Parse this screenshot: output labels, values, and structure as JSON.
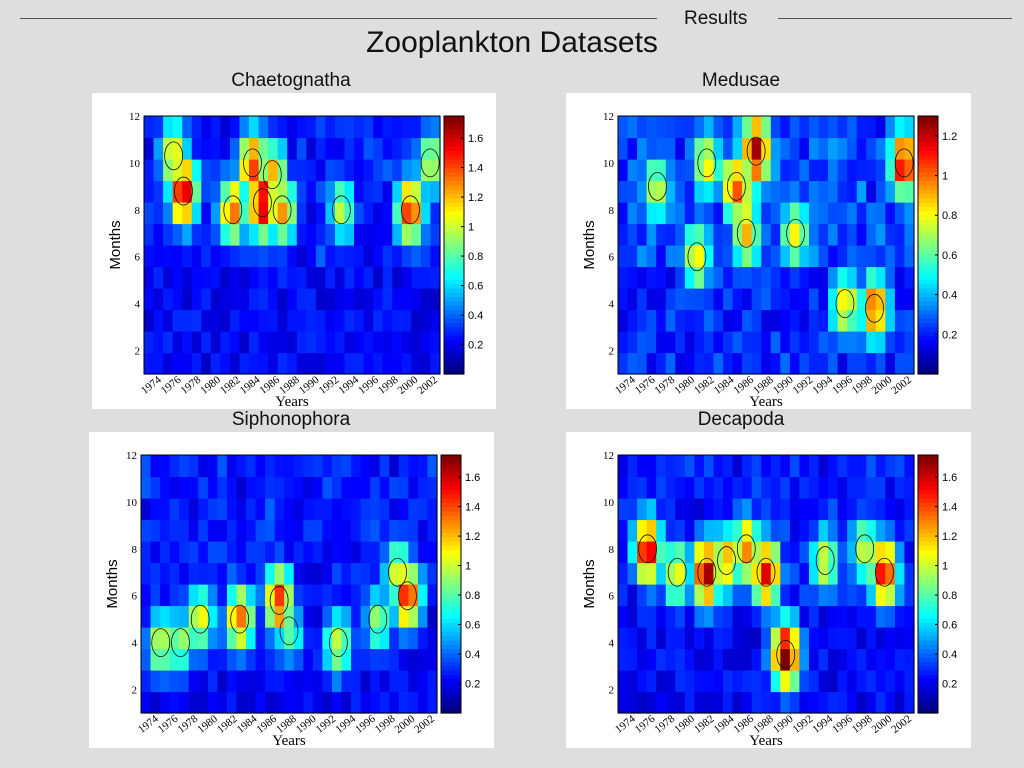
{
  "header": {
    "section": "Results",
    "title": "Zooplankton Datasets"
  },
  "chart_data": [
    {
      "type": "heatmap",
      "title": "Chaetognatha",
      "xlabel": "Years",
      "ylabel": "Months",
      "x_ticks": [
        "1974",
        "1976",
        "1978",
        "1980",
        "1982",
        "1984",
        "1986",
        "1988",
        "1990",
        "1992",
        "1994",
        "1996",
        "1998",
        "2000",
        "2002"
      ],
      "y_ticks": [
        "2",
        "4",
        "6",
        "8",
        "10",
        "12"
      ],
      "colorbar_ticks": [
        "0.2",
        "0.4",
        "0.6",
        "0.8",
        "1",
        "1.2",
        "1.4",
        "1.6"
      ],
      "xlim": [
        1973,
        2003
      ],
      "ylim": [
        1,
        12
      ],
      "zlim": [
        0,
        1.75
      ],
      "colormap": "jet",
      "hotspots": [
        {
          "x": 1977,
          "y": 8.8,
          "value": 1.6
        },
        {
          "x": 1976,
          "y": 10.3,
          "value": 1.1
        },
        {
          "x": 1982,
          "y": 8.0,
          "value": 1.3
        },
        {
          "x": 1984,
          "y": 10.0,
          "value": 1.4
        },
        {
          "x": 1985,
          "y": 8.3,
          "value": 1.6
        },
        {
          "x": 1987,
          "y": 8.0,
          "value": 1.2
        },
        {
          "x": 1986,
          "y": 9.5,
          "value": 1.2
        },
        {
          "x": 2000,
          "y": 8.0,
          "value": 1.45
        },
        {
          "x": 2002,
          "y": 10.0,
          "value": 1.0
        },
        {
          "x": 1993,
          "y": 8.0,
          "value": 0.9
        }
      ]
    },
    {
      "type": "heatmap",
      "title": "Medusae",
      "xlabel": "Years",
      "ylabel": "Months",
      "x_ticks": [
        "1974",
        "1976",
        "1978",
        "1980",
        "1982",
        "1984",
        "1986",
        "1988",
        "1990",
        "1992",
        "1994",
        "1996",
        "1998",
        "2000",
        "2002"
      ],
      "y_ticks": [
        "2",
        "4",
        "6",
        "8",
        "10",
        "12"
      ],
      "colorbar_ticks": [
        "0.2",
        "0.4",
        "0.6",
        "0.8",
        "1",
        "1.2"
      ],
      "xlim": [
        1973,
        2003
      ],
      "ylim": [
        1,
        12
      ],
      "zlim": [
        0,
        1.3
      ],
      "colormap": "jet",
      "hotspots": [
        {
          "x": 1987,
          "y": 10.5,
          "value": 1.25
        },
        {
          "x": 1985,
          "y": 9.0,
          "value": 1.0
        },
        {
          "x": 1986,
          "y": 7.0,
          "value": 0.9
        },
        {
          "x": 2002,
          "y": 10.0,
          "value": 1.15
        },
        {
          "x": 1999,
          "y": 3.8,
          "value": 1.0
        },
        {
          "x": 1981,
          "y": 6.0,
          "value": 0.8
        },
        {
          "x": 1991,
          "y": 7.0,
          "value": 0.8
        },
        {
          "x": 1996,
          "y": 4.0,
          "value": 0.8
        },
        {
          "x": 1982,
          "y": 10.0,
          "value": 0.8
        },
        {
          "x": 1977,
          "y": 9.0,
          "value": 0.7
        }
      ]
    },
    {
      "type": "heatmap",
      "title": "Siphonophora",
      "xlabel": "Years",
      "ylabel": "Months",
      "x_ticks": [
        "1974",
        "1976",
        "1978",
        "1980",
        "1982",
        "1984",
        "1986",
        "1988",
        "1990",
        "1992",
        "1994",
        "1996",
        "1998",
        "2000",
        "2002"
      ],
      "y_ticks": [
        "2",
        "4",
        "6",
        "8",
        "10",
        "12"
      ],
      "colorbar_ticks": [
        "0.2",
        "0.4",
        "0.6",
        "0.8",
        "1",
        "1.2",
        "1.4",
        "1.6"
      ],
      "xlim": [
        1973,
        2003
      ],
      "ylim": [
        1,
        12
      ],
      "zlim": [
        0,
        1.75
      ],
      "colormap": "jet",
      "hotspots": [
        {
          "x": 1987,
          "y": 5.8,
          "value": 1.4
        },
        {
          "x": 1983,
          "y": 5.0,
          "value": 1.3
        },
        {
          "x": 2000,
          "y": 6.0,
          "value": 1.45
        },
        {
          "x": 1979,
          "y": 5.0,
          "value": 1.05
        },
        {
          "x": 1975,
          "y": 4.0,
          "value": 1.0
        },
        {
          "x": 1977,
          "y": 4.0,
          "value": 0.9
        },
        {
          "x": 1999,
          "y": 7.0,
          "value": 1.0
        },
        {
          "x": 1993,
          "y": 4.0,
          "value": 1.0
        },
        {
          "x": 1997,
          "y": 5.0,
          "value": 0.85
        },
        {
          "x": 1988,
          "y": 4.5,
          "value": 0.8
        }
      ]
    },
    {
      "type": "heatmap",
      "title": "Decapoda",
      "xlabel": "Years",
      "ylabel": "Months",
      "x_ticks": [
        "1974",
        "1976",
        "1978",
        "1980",
        "1982",
        "1984",
        "1986",
        "1988",
        "1990",
        "1992",
        "1994",
        "1996",
        "1998",
        "2000",
        "2002"
      ],
      "y_ticks": [
        "2",
        "4",
        "6",
        "8",
        "10",
        "12"
      ],
      "colorbar_ticks": [
        "0.2",
        "0.4",
        "0.6",
        "0.8",
        "1",
        "1.2",
        "1.4",
        "1.6"
      ],
      "xlim": [
        1973,
        2003
      ],
      "ylim": [
        1,
        12
      ],
      "zlim": [
        0,
        1.75
      ],
      "colormap": "jet",
      "hotspots": [
        {
          "x": 1976,
          "y": 8.0,
          "value": 1.55
        },
        {
          "x": 1982,
          "y": 7.0,
          "value": 1.65
        },
        {
          "x": 1988,
          "y": 7.0,
          "value": 1.55
        },
        {
          "x": 1990,
          "y": 3.5,
          "value": 1.7
        },
        {
          "x": 2000,
          "y": 7.0,
          "value": 1.5
        },
        {
          "x": 1986,
          "y": 8.0,
          "value": 1.3
        },
        {
          "x": 1984,
          "y": 7.5,
          "value": 1.2
        },
        {
          "x": 1979,
          "y": 7.0,
          "value": 1.1
        },
        {
          "x": 1994,
          "y": 7.5,
          "value": 1.0
        },
        {
          "x": 1998,
          "y": 8.0,
          "value": 1.0
        }
      ]
    }
  ]
}
